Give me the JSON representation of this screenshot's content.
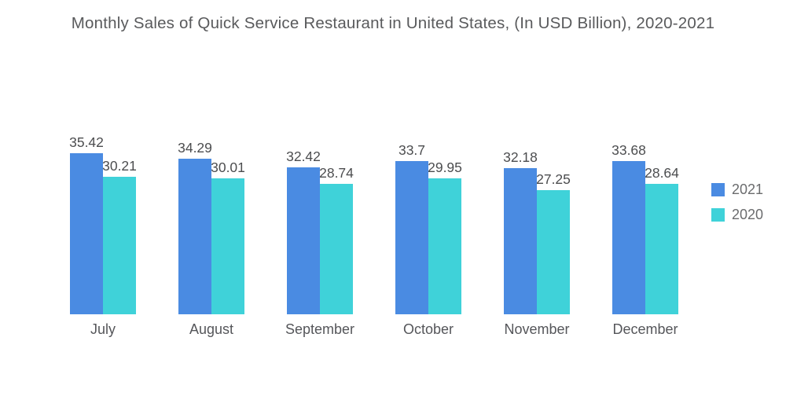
{
  "chart_data": {
    "type": "bar",
    "title": "Monthly Sales of Quick Service Restaurant in United States, (In USD Billion), 2020-2021",
    "categories": [
      "July",
      "August",
      "September",
      "October",
      "November",
      "December"
    ],
    "series": [
      {
        "name": "2021",
        "color": "#4A8BE2",
        "values": [
          35.42,
          34.29,
          32.42,
          33.7,
          32.18,
          33.68
        ]
      },
      {
        "name": "2020",
        "color": "#3FD2D9",
        "values": [
          30.21,
          30.01,
          28.74,
          29.95,
          27.25,
          28.64
        ]
      }
    ],
    "value_labels": true,
    "grid": false,
    "legend_position": "right",
    "ylim": [
      0,
      40
    ],
    "xlabel": "",
    "ylabel": ""
  },
  "colors": {
    "title_text": "#595a5c",
    "value_label_text": "#4c4d4f",
    "axis_label_text": "#55565a",
    "legend_text": "#6b6c6e",
    "background": "#ffffff"
  }
}
